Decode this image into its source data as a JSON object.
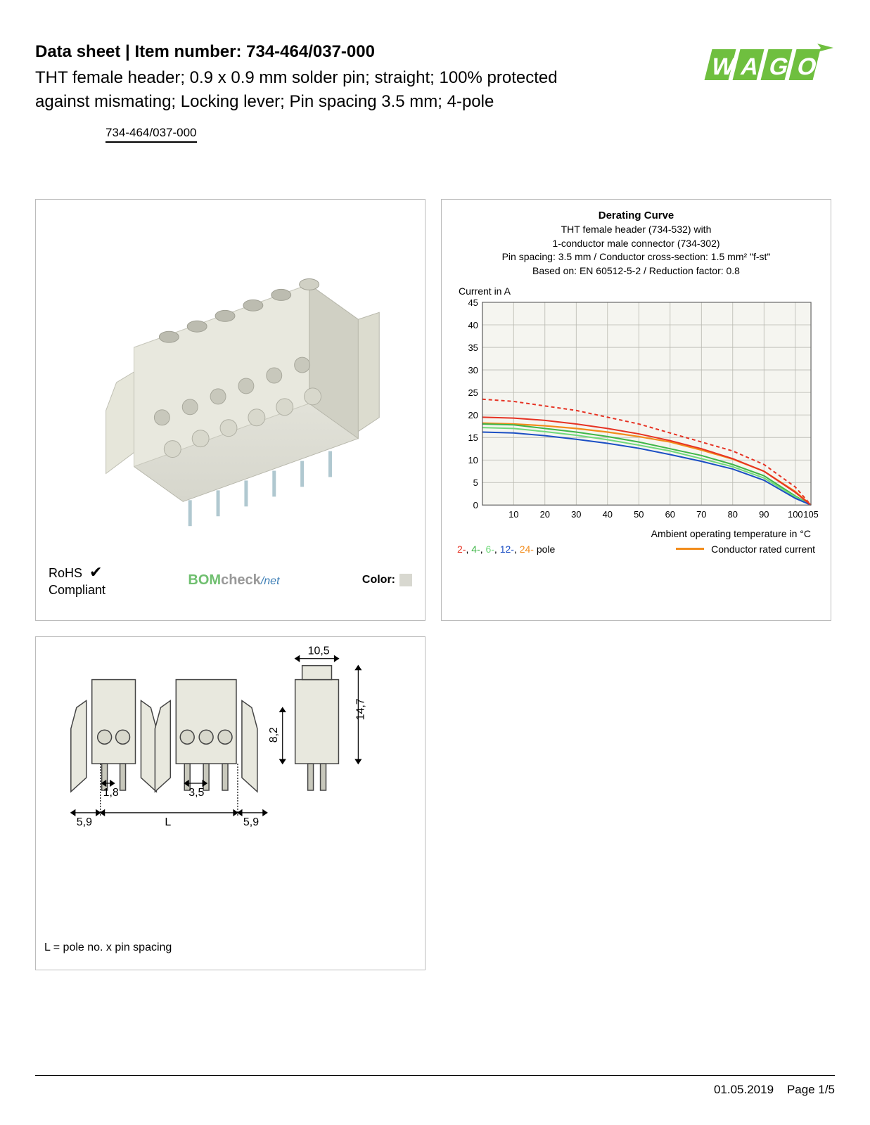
{
  "header": {
    "title_prefix": "Data sheet",
    "title_sep": "  |  ",
    "title_label": "Item number:",
    "item_number": "734-464/037-000",
    "subtitle": "THT female header; 0.9 x 0.9 mm solder pin; straight; 100% protected against mismating; Locking lever; Pin spacing 3.5 mm; 4-pole",
    "link_text": "734-464/037-000",
    "logo_text": "WAGO",
    "logo_color": "#6fbf3f"
  },
  "compliance": {
    "rohs_line1": "RoHS",
    "rohs_line2": "Compliant",
    "bomcheck_bom": "BOM",
    "bomcheck_check": "check",
    "bomcheck_slash": "/",
    "bomcheck_net": "net",
    "color_label": "Color:",
    "color_hex": "#d8d8d0"
  },
  "chart": {
    "title": "Derating Curve",
    "sub_line1": "THT female header (734-532) with",
    "sub_line2": "1-conductor male connector (734-302)",
    "sub_line3_html": "Pin spacing: 3.5 mm / Conductor cross-section: 1.5 mm² \"f-st\"",
    "sub_line4": "Based on: EN 60512-5-2 / Reduction factor: 0.8",
    "yaxis_label": "Current in A",
    "xaxis_label": "Ambient operating temperature in °C",
    "ylim": [
      0,
      45
    ],
    "xlim": [
      0,
      105
    ],
    "ytick_step": 5,
    "yticks": [
      0,
      5,
      10,
      15,
      20,
      25,
      30,
      35,
      40,
      45
    ],
    "xticks": [
      10,
      20,
      30,
      40,
      50,
      60,
      70,
      80,
      90,
      100,
      105
    ],
    "plot_bg": "#f5f5f0",
    "grid_color": "#b8b8b0",
    "axis_font_size": 13,
    "label_font_size": 14,
    "series": [
      {
        "name": "2-pole",
        "color": "#e63223",
        "dash": "5,4",
        "width": 2,
        "points": [
          [
            0,
            23.5
          ],
          [
            10,
            23
          ],
          [
            20,
            22
          ],
          [
            30,
            21
          ],
          [
            40,
            19.5
          ],
          [
            50,
            18
          ],
          [
            60,
            16
          ],
          [
            70,
            14
          ],
          [
            80,
            12
          ],
          [
            90,
            9
          ],
          [
            100,
            4
          ],
          [
            105,
            0
          ]
        ]
      },
      {
        "name": "conductor-rated",
        "color": "#f28c1b",
        "dash": "",
        "width": 2.2,
        "points": [
          [
            0,
            18.2
          ],
          [
            10,
            18
          ],
          [
            20,
            17.6
          ],
          [
            30,
            17
          ],
          [
            40,
            16.2
          ],
          [
            50,
            15.2
          ],
          [
            60,
            14
          ],
          [
            70,
            12.2
          ],
          [
            80,
            10.2
          ],
          [
            90,
            7.5
          ],
          [
            100,
            3
          ],
          [
            105,
            0
          ]
        ]
      },
      {
        "name": "4-pole",
        "color": "#3fb648",
        "dash": "",
        "width": 2,
        "points": [
          [
            0,
            18
          ],
          [
            10,
            17.8
          ],
          [
            20,
            17
          ],
          [
            30,
            16.2
          ],
          [
            40,
            15.2
          ],
          [
            50,
            14
          ],
          [
            60,
            12.5
          ],
          [
            70,
            11
          ],
          [
            80,
            9
          ],
          [
            90,
            6.5
          ],
          [
            100,
            2
          ],
          [
            105,
            0
          ]
        ]
      },
      {
        "name": "6-pole",
        "color": "#6fd97a",
        "dash": "",
        "width": 2,
        "points": [
          [
            0,
            17.2
          ],
          [
            10,
            17
          ],
          [
            20,
            16.3
          ],
          [
            30,
            15.5
          ],
          [
            40,
            14.5
          ],
          [
            50,
            13.3
          ],
          [
            60,
            12
          ],
          [
            70,
            10.3
          ],
          [
            80,
            8.5
          ],
          [
            90,
            6
          ],
          [
            100,
            1.8
          ],
          [
            105,
            0
          ]
        ]
      },
      {
        "name": "12-pole",
        "color": "#1b4fc4",
        "dash": "",
        "width": 2,
        "points": [
          [
            0,
            16.2
          ],
          [
            10,
            16
          ],
          [
            20,
            15.4
          ],
          [
            30,
            14.6
          ],
          [
            40,
            13.7
          ],
          [
            50,
            12.6
          ],
          [
            60,
            11.2
          ],
          [
            70,
            9.7
          ],
          [
            80,
            8
          ],
          [
            90,
            5.5
          ],
          [
            100,
            1.5
          ],
          [
            105,
            0
          ]
        ]
      },
      {
        "name": "24-pole",
        "color": "#e63223",
        "dash": "",
        "width": 2,
        "points": [
          [
            0,
            19.5
          ],
          [
            10,
            19.3
          ],
          [
            20,
            18.8
          ],
          [
            30,
            18
          ],
          [
            40,
            17
          ],
          [
            50,
            15.8
          ],
          [
            60,
            14.3
          ],
          [
            70,
            12.5
          ],
          [
            80,
            10.3
          ],
          [
            90,
            7.5
          ],
          [
            100,
            2.8
          ],
          [
            105,
            0
          ]
        ]
      }
    ],
    "legend_left": {
      "p2": "2-",
      "p4": "4-",
      "p6": "6-",
      "p12": "12-",
      "p24": "24-",
      "suffix": " pole"
    },
    "legend_right": "Conductor rated current"
  },
  "dimensions": {
    "d_10_5": "10,5",
    "d_14_7": "14,7",
    "d_8_2": "8,2",
    "d_1_8": "1,8",
    "d_3_5": "3,5",
    "d_5_9a": "5,9",
    "d_L": "L",
    "d_5_9b": "5,9",
    "note": "L = pole no. x pin spacing"
  },
  "footer": {
    "date": "01.05.2019",
    "page": "Page 1/5"
  }
}
